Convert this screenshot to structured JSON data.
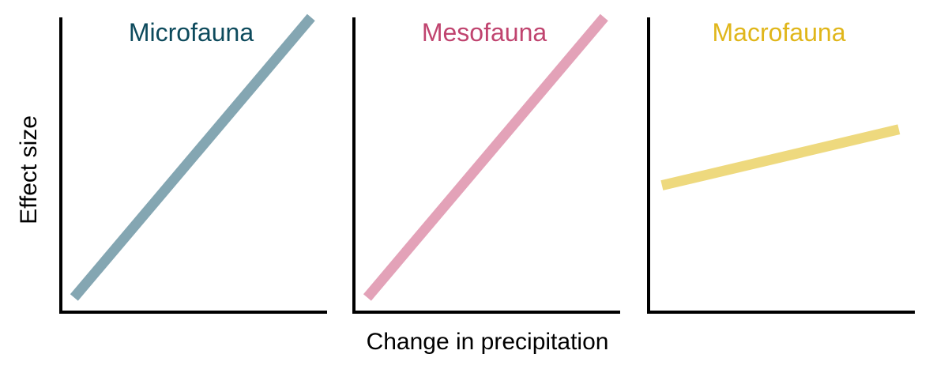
{
  "chart_data": {
    "type": "line",
    "xlabel": "Change in precipitation",
    "ylabel": "Effect size",
    "xlim": [
      0,
      1
    ],
    "ylim": [
      0,
      1
    ],
    "grid": false,
    "legend": "none",
    "panels": [
      {
        "title": "Microfauna",
        "title_color": "#0d4a5c",
        "line_color": "#84a6b2",
        "series": [
          {
            "x": [
              0.05,
              0.94
            ],
            "y": [
              0.05,
              1.0
            ]
          }
        ]
      },
      {
        "title": "Mesofauna",
        "title_color": "#c0446f",
        "line_color": "#e3a2b8",
        "series": [
          {
            "x": [
              0.05,
              0.94
            ],
            "y": [
              0.05,
              1.0
            ]
          }
        ]
      },
      {
        "title": "Macrofauna",
        "title_color": "#e0b61a",
        "line_color": "#eed97e",
        "series": [
          {
            "x": [
              0.05,
              0.94
            ],
            "y": [
              0.43,
              0.62
            ]
          }
        ]
      }
    ]
  }
}
